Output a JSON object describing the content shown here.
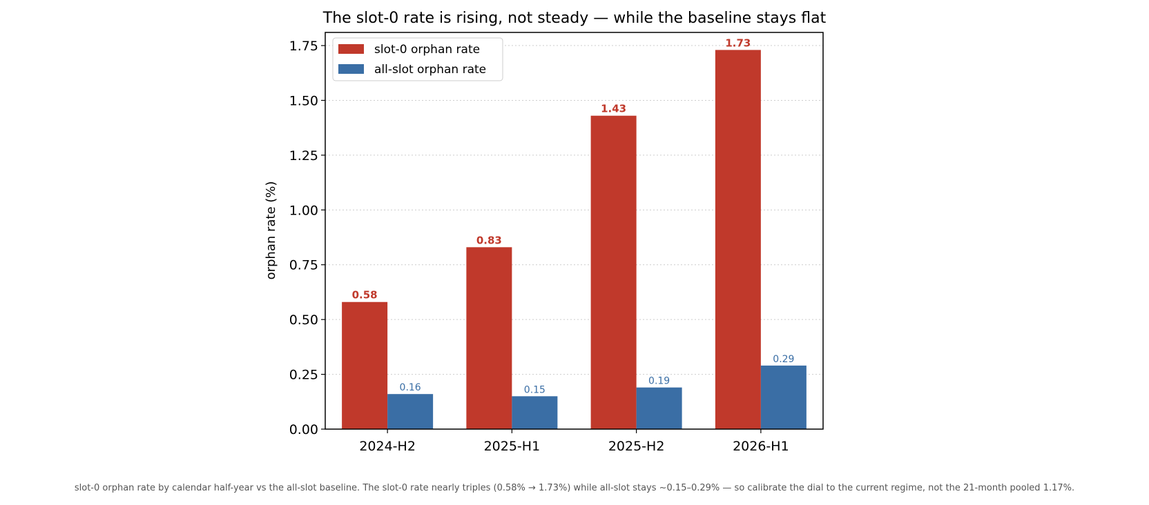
{
  "chart_data": {
    "type": "bar",
    "title": "The slot-0 rate is rising, not steady — while the baseline stays flat",
    "xlabel": "",
    "ylabel": "orphan rate  (%)",
    "categories": [
      "2024-H2",
      "2025-H1",
      "2025-H2",
      "2026-H1"
    ],
    "series": [
      {
        "name": "slot-0 orphan rate",
        "values": [
          0.58,
          0.83,
          1.43,
          1.73
        ],
        "labels": [
          "0.58",
          "0.83",
          "1.43",
          "1.73"
        ],
        "color": "#c0392b"
      },
      {
        "name": "all-slot orphan rate",
        "values": [
          0.16,
          0.15,
          0.19,
          0.29
        ],
        "labels": [
          "0.16",
          "0.15",
          "0.19",
          "0.29"
        ],
        "color": "#3a6ea5"
      }
    ],
    "ylim": [
      0,
      1.81
    ],
    "yticks": [
      0.0,
      0.25,
      0.5,
      0.75,
      1.0,
      1.25,
      1.5,
      1.75
    ],
    "ytick_labels": [
      "0.00",
      "0.25",
      "0.50",
      "0.75",
      "1.00",
      "1.25",
      "1.50",
      "1.75"
    ],
    "grid": "y-dotted",
    "legend_position": "top-left"
  },
  "caption": "slot-0 orphan rate by calendar half-year vs the all-slot baseline. The slot-0 rate nearly triples (0.58% → 1.73%) while all-slot stays ~0.15–0.29% — so calibrate the dial to the current regime, not the 21-month pooled 1.17%."
}
